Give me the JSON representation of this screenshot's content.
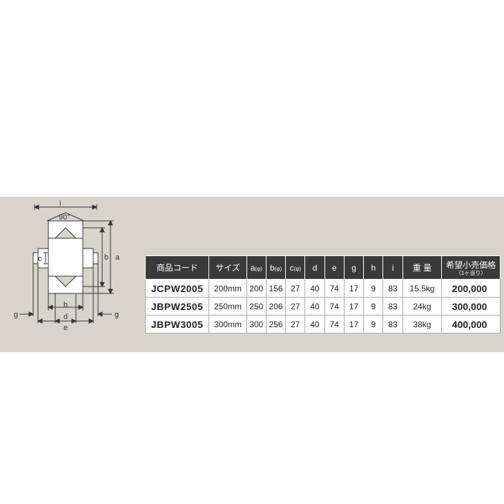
{
  "diagram": {
    "angle_label": "90°",
    "dim_labels": [
      "a",
      "b",
      "c",
      "d",
      "e",
      "g",
      "h",
      "i"
    ]
  },
  "table": {
    "header_bg": "#3a3a3a",
    "header_fg": "#ffffff",
    "columns": [
      {
        "label": "商品コード",
        "sub": ""
      },
      {
        "label": "サイズ",
        "sub": ""
      },
      {
        "label": "a",
        "sub": "(φ)"
      },
      {
        "label": "b",
        "sub": "(φ)"
      },
      {
        "label": "c",
        "sub": "(φ)"
      },
      {
        "label": "d",
        "sub": ""
      },
      {
        "label": "e",
        "sub": ""
      },
      {
        "label": "g",
        "sub": ""
      },
      {
        "label": "h",
        "sub": ""
      },
      {
        "label": "i",
        "sub": ""
      },
      {
        "label": "重 量",
        "sub": ""
      },
      {
        "label": "希望小売価格",
        "sub": "（1ヶ当り）"
      }
    ],
    "rows": [
      {
        "code": "JCPW2005",
        "size": "200mm",
        "a": "200",
        "b": "156",
        "c": "27",
        "d": "40",
        "e": "74",
        "g": "17",
        "h": "9",
        "i": "83",
        "weight": "15.5kg",
        "price": "200,000"
      },
      {
        "code": "JBPW2505",
        "size": "250mm",
        "a": "250",
        "b": "206",
        "c": "27",
        "d": "40",
        "e": "74",
        "g": "17",
        "h": "9",
        "i": "83",
        "weight": "24kg",
        "price": "300,000"
      },
      {
        "code": "JBPW3005",
        "size": "300mm",
        "a": "300",
        "b": "256",
        "c": "27",
        "d": "40",
        "e": "74",
        "g": "17",
        "h": "9",
        "i": "83",
        "weight": "38kg",
        "price": "400,000"
      }
    ]
  }
}
